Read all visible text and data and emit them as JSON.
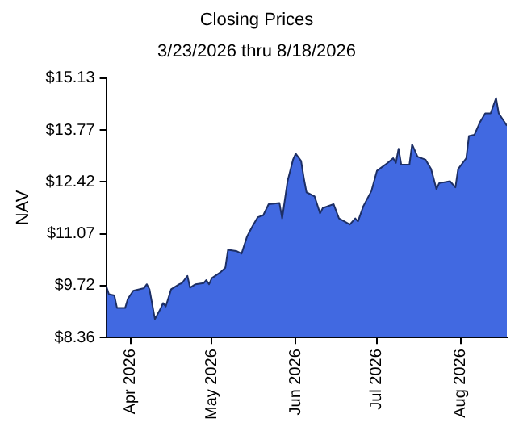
{
  "chart_data": {
    "type": "area",
    "title": "Closing Prices",
    "subtitle": "3/23/2026 thru 8/18/2026",
    "ylabel": "NAV",
    "x": [
      "2026-03-23",
      "2026-03-24",
      "2026-03-26",
      "2026-03-27",
      "2026-03-30",
      "2026-03-31",
      "2026-04-02",
      "2026-04-06",
      "2026-04-07",
      "2026-04-08",
      "2026-04-10",
      "2026-04-12",
      "2026-04-13",
      "2026-04-14",
      "2026-04-16",
      "2026-04-19",
      "2026-04-20",
      "2026-04-22",
      "2026-04-23",
      "2026-04-25",
      "2026-04-28",
      "2026-04-29",
      "2026-04-30",
      "2026-05-01",
      "2026-05-04",
      "2026-05-06",
      "2026-05-07",
      "2026-05-10",
      "2026-05-12",
      "2026-05-14",
      "2026-05-16",
      "2026-05-18",
      "2026-05-20",
      "2026-05-22",
      "2026-05-26",
      "2026-05-27",
      "2026-05-29",
      "2026-05-31",
      "2026-06-01",
      "2026-06-03",
      "2026-06-04",
      "2026-06-05",
      "2026-06-08",
      "2026-06-10",
      "2026-06-11",
      "2026-06-15",
      "2026-06-17",
      "2026-06-21",
      "2026-06-23",
      "2026-06-24",
      "2026-06-26",
      "2026-06-29",
      "2026-07-01",
      "2026-07-05",
      "2026-07-07",
      "2026-07-08",
      "2026-07-09",
      "2026-07-10",
      "2026-07-13",
      "2026-07-14",
      "2026-07-16",
      "2026-07-19",
      "2026-07-21",
      "2026-07-23",
      "2026-07-24",
      "2026-07-28",
      "2026-07-30",
      "2026-07-31",
      "2026-08-03",
      "2026-08-04",
      "2026-08-06",
      "2026-08-08",
      "2026-08-10",
      "2026-08-12",
      "2026-08-14",
      "2026-08-15",
      "2026-08-17",
      "2026-08-18"
    ],
    "series": [
      {
        "color": "#4169e1",
        "values": [
          9.71,
          9.49,
          9.46,
          9.13,
          9.13,
          9.37,
          9.58,
          9.65,
          9.75,
          9.62,
          8.84,
          9.1,
          9.26,
          9.17,
          9.62,
          9.75,
          9.78,
          9.97,
          9.66,
          9.75,
          9.78,
          9.86,
          9.75,
          9.91,
          10.05,
          10.18,
          10.65,
          10.62,
          10.55,
          10.99,
          11.26,
          11.5,
          11.55,
          11.84,
          11.87,
          11.47,
          12.44,
          13.0,
          13.16,
          12.97,
          12.52,
          12.15,
          12.04,
          11.6,
          11.74,
          11.84,
          11.47,
          11.31,
          11.47,
          11.39,
          11.79,
          12.19,
          12.71,
          12.92,
          13.04,
          12.92,
          13.29,
          12.87,
          12.87,
          13.4,
          13.08,
          13.0,
          12.76,
          12.23,
          12.39,
          12.44,
          12.28,
          12.76,
          13.04,
          13.62,
          13.65,
          13.97,
          14.21,
          14.21,
          14.61,
          14.21,
          14.0,
          13.89
        ]
      }
    ],
    "xlim": [
      "2026-03-23",
      "2026-08-18"
    ],
    "xticks": [
      {
        "value": "2026-04-01",
        "label": "Apr 2026"
      },
      {
        "value": "2026-05-01",
        "label": "May 2026"
      },
      {
        "value": "2026-06-01",
        "label": "Jun 2026"
      },
      {
        "value": "2026-07-01",
        "label": "Jul 2026"
      },
      {
        "value": "2026-08-01",
        "label": "Aug 2026"
      }
    ],
    "ylim": [
      8.36,
      15.13
    ],
    "yticks": [
      {
        "value": 8.36,
        "label": "$8.36"
      },
      {
        "value": 9.72,
        "label": "$9.72"
      },
      {
        "value": 11.07,
        "label": "$11.07"
      },
      {
        "value": 12.42,
        "label": "$12.42"
      },
      {
        "value": 13.77,
        "label": "$13.77"
      },
      {
        "value": 15.13,
        "label": "$15.13"
      }
    ],
    "grid": false,
    "legend": false
  }
}
